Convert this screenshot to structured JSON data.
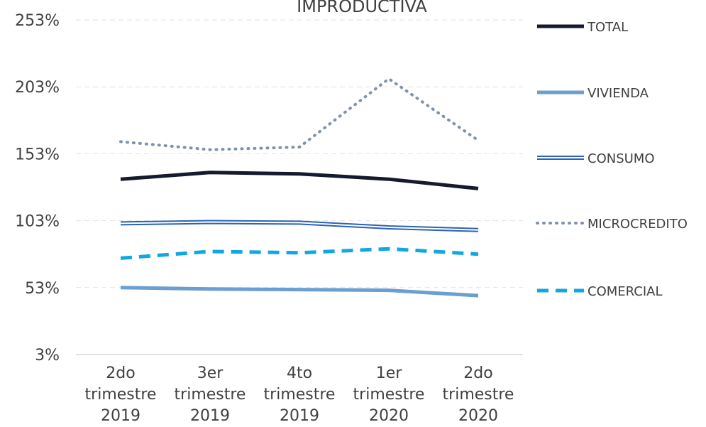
{
  "chart_data": {
    "type": "line",
    "title": "IMPRODUCTIVA",
    "categories": [
      [
        "2do",
        "trimestre",
        "2019"
      ],
      [
        "3er",
        "trimestre",
        "2019"
      ],
      [
        "4to",
        "trimestre",
        "2019"
      ],
      [
        "1er",
        "trimestre",
        "2020"
      ],
      [
        "2do",
        "trimestre",
        "2020"
      ]
    ],
    "ylim": [
      3,
      253
    ],
    "yticks": [
      3,
      53,
      103,
      153,
      203,
      253
    ],
    "ytick_labels": [
      "3%",
      "53%",
      "103%",
      "153%",
      "203%",
      "253%"
    ],
    "grid": true,
    "legend_position": "right",
    "series": [
      {
        "name": "TOTAL",
        "values": [
          134,
          139,
          138,
          134,
          127
        ],
        "color": "#161a2e",
        "style": "solid"
      },
      {
        "name": "VIVIENDA",
        "values": [
          53,
          52,
          51.5,
          51,
          47
        ],
        "color": "#6a9fd2",
        "style": "solid"
      },
      {
        "name": "CONSUMO",
        "values": [
          101,
          102,
          101.5,
          98,
          96
        ],
        "color": "#2b63b5",
        "style": "double"
      },
      {
        "name": "MICROCREDITO",
        "values": [
          162,
          156,
          158,
          209,
          163
        ],
        "color": "#7f91ad",
        "style": "dotted"
      },
      {
        "name": "COMERCIAL",
        "values": [
          75,
          80,
          79,
          82,
          78
        ],
        "color": "#12a7e0",
        "style": "dashed"
      }
    ]
  }
}
